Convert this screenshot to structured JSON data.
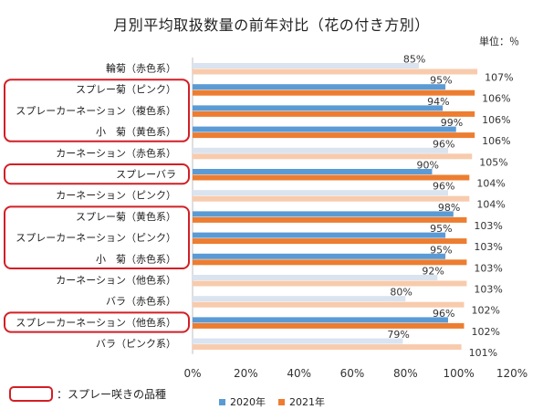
{
  "title": "月別平均取扱数量の前年対比（花の付き方別）",
  "unit_label": "単位：％",
  "note_label": "：スプレー咲きの品種",
  "legend": [
    {
      "name": "2020年",
      "color": "#5b9bd5"
    },
    {
      "name": "2021年",
      "color": "#ed7d31"
    }
  ],
  "chart_data": {
    "type": "bar",
    "orientation": "horizontal",
    "categories": [
      "輪菊（赤色系）",
      "スプレー菊（ピンク）",
      "スプレーカーネーション（複色系）",
      "小　菊（黄色系）",
      "カーネーション（赤色系）",
      "スプレーバラ",
      "カーネーション（ピンク）",
      "スプレー菊（黄色系）",
      "スプレーカーネーション（ピンク）",
      "小　菊（赤色系）",
      "カーネーション（他色系）",
      "バラ（赤色系）",
      "スプレーカーネーション（他色系）",
      "バラ（ピンク系）"
    ],
    "spray": [
      false,
      true,
      true,
      true,
      false,
      true,
      false,
      true,
      true,
      true,
      false,
      false,
      true,
      false
    ],
    "series": [
      {
        "name": "2020年",
        "values": [
          85,
          95,
          94,
          99,
          96,
          90,
          96,
          98,
          95,
          95,
          92,
          80,
          96,
          79
        ]
      },
      {
        "name": "2021年",
        "values": [
          107,
          106,
          106,
          106,
          105,
          104,
          104,
          103,
          103,
          103,
          103,
          102,
          102,
          101
        ]
      }
    ],
    "value_labels": [
      [
        "85%",
        "95%",
        "94%",
        "99%",
        "96%",
        "90%",
        "96%",
        "98%",
        "95%",
        "95%",
        "92%",
        "80%",
        "96%",
        "79%"
      ],
      [
        "107%",
        "106%",
        "106%",
        "106%",
        "105%",
        "104%",
        "104%",
        "103%",
        "103%",
        "103%",
        "103%",
        "102%",
        "102%",
        "101%"
      ]
    ],
    "x_ticks": [
      "0%",
      "20%",
      "40%",
      "60%",
      "80%",
      "100%",
      "120%"
    ],
    "xlim": [
      0,
      120
    ],
    "colors": {
      "2020_spray": "#5b9bd5",
      "2021_spray": "#ed7d31",
      "2020_other": "#dae3f0",
      "2021_other": "#f8cbad",
      "box": "#d21f26"
    }
  }
}
